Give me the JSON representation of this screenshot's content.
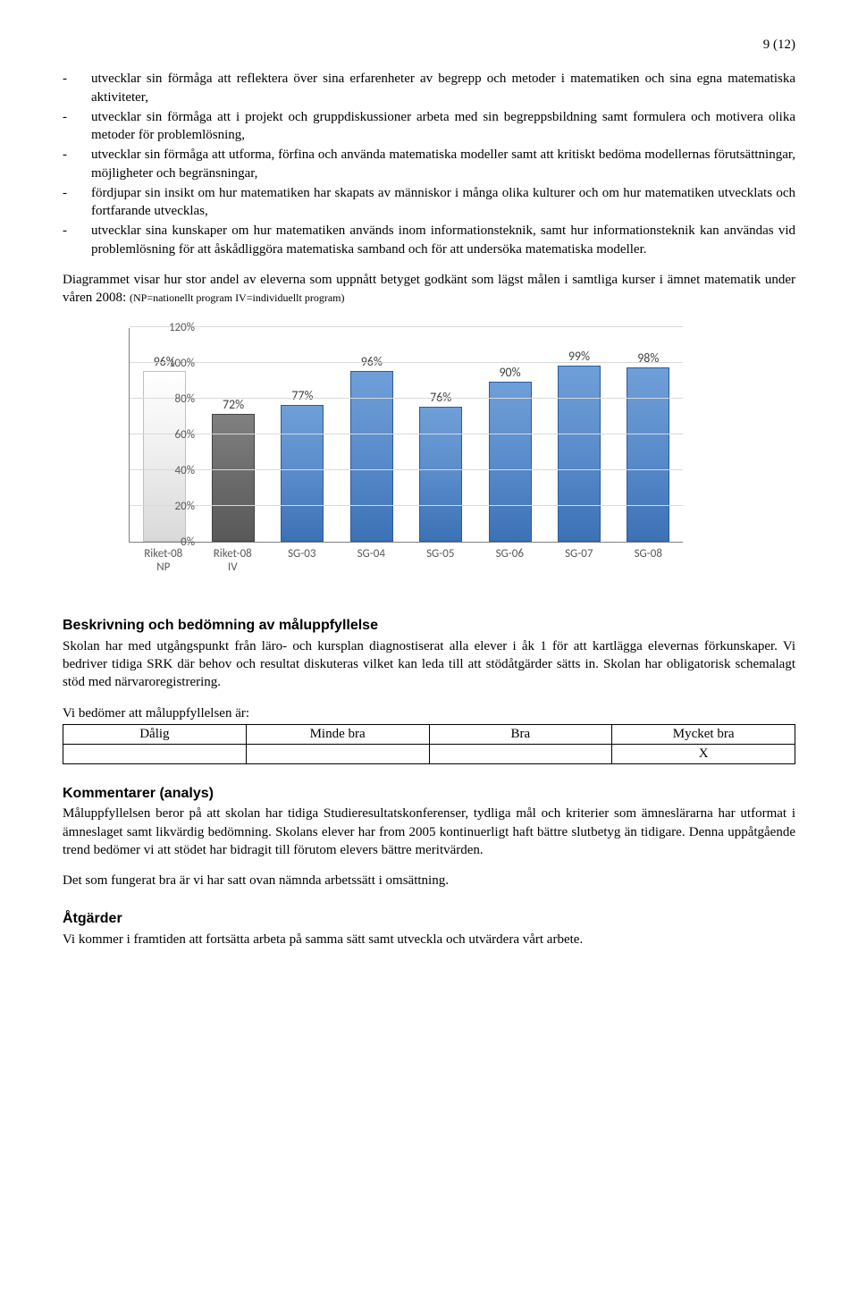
{
  "page_number": "9 (12)",
  "bullets": [
    "utvecklar sin förmåga att reflektera över sina erfarenheter av begrepp och metoder i matematiken och sina egna matematiska aktiviteter,",
    "utvecklar sin förmåga att i projekt och gruppdiskussioner arbeta med sin begreppsbildning samt formulera och motivera olika metoder för problemlösning,",
    "utvecklar sin förmåga att utforma, förfina och använda matematiska modeller samt att kritiskt bedöma modellernas förutsättningar, möjligheter och begränsningar,",
    "fördjupar sin insikt om hur matematiken har skapats av människor i många olika kulturer och om hur matematiken utvecklats och fortfarande utvecklas,",
    "utvecklar sina kunskaper om hur matematiken används inom informationsteknik, samt hur informationsteknik kan användas vid problemlösning för att åskådliggöra matematiska samband och för att undersöka matematiska modeller."
  ],
  "intro_text": "Diagrammet visar hur stor andel av eleverna som uppnått betyget godkänt som lägst målen i samtliga kurser i ämnet matematik under våren 2008: ",
  "intro_note": "(NP=nationellt program IV=individuellt program)",
  "chart": {
    "y_ticks": [
      "0%",
      "20%",
      "40%",
      "60%",
      "80%",
      "100%",
      "120%"
    ],
    "ymax": 120,
    "bars": [
      {
        "label": "Riket-08\nNP",
        "value": 96,
        "value_label": "96%",
        "fill": "linear-gradient(to bottom,#ffffff 0%,#f2f2f2 40%,#d9d9d9 100%)",
        "border": "#bfbfbf"
      },
      {
        "label": "Riket-08\nIV",
        "value": 72,
        "value_label": "72%",
        "fill": "linear-gradient(to bottom,#808080 0%,#6b6b6b 50%,#595959 100%)",
        "border": "#404040"
      },
      {
        "label": "SG-03",
        "value": 77,
        "value_label": "77%",
        "fill": "linear-gradient(to bottom,#6f9fd8 0%,#5a8ccb 50%,#3c71b6 100%)",
        "border": "#2c5a99"
      },
      {
        "label": "SG-04",
        "value": 96,
        "value_label": "96%",
        "fill": "linear-gradient(to bottom,#6f9fd8 0%,#5a8ccb 50%,#3c71b6 100%)",
        "border": "#2c5a99"
      },
      {
        "label": "SG-05",
        "value": 76,
        "value_label": "76%",
        "fill": "linear-gradient(to bottom,#6f9fd8 0%,#5a8ccb 50%,#3c71b6 100%)",
        "border": "#2c5a99"
      },
      {
        "label": "SG-06",
        "value": 90,
        "value_label": "90%",
        "fill": "linear-gradient(to bottom,#6f9fd8 0%,#5a8ccb 50%,#3c71b6 100%)",
        "border": "#2c5a99"
      },
      {
        "label": "SG-07",
        "value": 99,
        "value_label": "99%",
        "fill": "linear-gradient(to bottom,#6f9fd8 0%,#5a8ccb 50%,#3c71b6 100%)",
        "border": "#2c5a99"
      },
      {
        "label": "SG-08",
        "value": 98,
        "value_label": "98%",
        "fill": "linear-gradient(to bottom,#6f9fd8 0%,#5a8ccb 50%,#3c71b6 100%)",
        "border": "#2c5a99"
      }
    ]
  },
  "section_desc_title": "Beskrivning och bedömning av måluppfyllelse",
  "section_desc_body": "Skolan har med utgångspunkt från läro- och kursplan diagnostiserat alla elever i åk 1 för att kartlägga elevernas förkunskaper. Vi bedriver tidiga SRK där behov och resultat diskuteras vilket kan leda till att stödåtgärder sätts in. Skolan har obligatorisk schemalagt stöd med närvaroregistrering.",
  "assess_intro": "Vi bedömer att måluppfyllelsen är:",
  "assess_table": {
    "headers": [
      "Dålig",
      "Minde bra",
      "Bra",
      "Mycket bra"
    ],
    "mark_index": 3,
    "mark": "X"
  },
  "section_comment_title": "Kommentarer (analys)",
  "section_comment_body": "Måluppfyllelsen beror på att skolan har tidiga Studieresultatskonferenser, tydliga mål och kriterier som ämneslärarna har utformat i ämneslaget samt likvärdig bedömning. Skolans elever har from 2005 kontinuerligt haft bättre slutbetyg än tidigare. Denna uppåtgående trend bedömer vi att stödet har bidragit till förutom elevers bättre meritvärden.",
  "section_comment_extra": "Det som fungerat bra är vi har satt ovan nämnda arbetssätt i omsättning.",
  "section_actions_title": "Åtgärder",
  "section_actions_body": "Vi kommer i framtiden att fortsätta arbeta på samma sätt samt utveckla och utvärdera vårt arbete."
}
